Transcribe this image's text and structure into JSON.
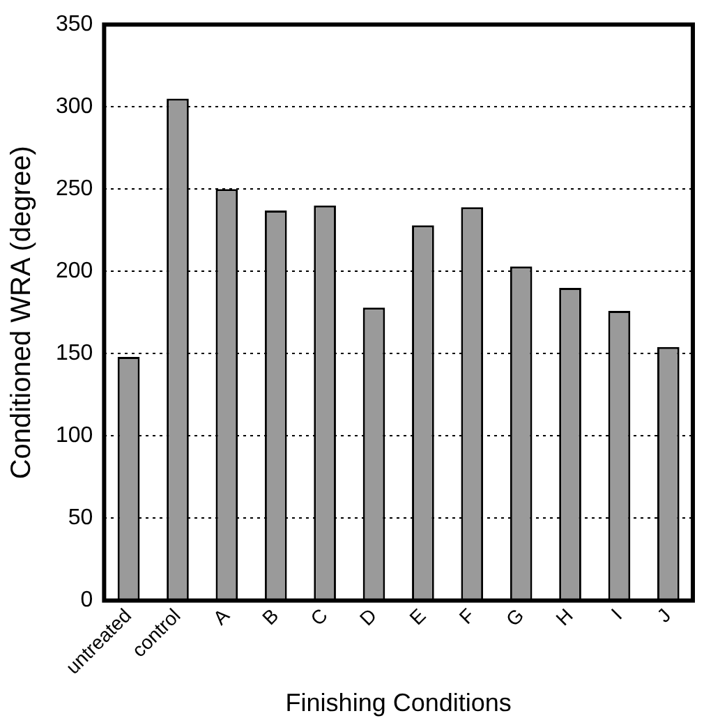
{
  "chart_data": {
    "type": "bar",
    "xlabel": "Finishing Conditions",
    "ylabel": "Conditioned WRA (degree)",
    "categories": [
      "untreated",
      "control",
      "A",
      "B",
      "C",
      "D",
      "E",
      "F",
      "G",
      "H",
      "I",
      "J"
    ],
    "values": [
      148,
      305,
      250,
      237,
      240,
      178,
      228,
      239,
      203,
      190,
      176,
      154
    ],
    "color": "#9a9a9a",
    "ylim": [
      0,
      350
    ],
    "yticks": [
      0,
      50,
      100,
      150,
      200,
      250,
      300,
      350
    ],
    "grid": "y",
    "legend": false
  }
}
